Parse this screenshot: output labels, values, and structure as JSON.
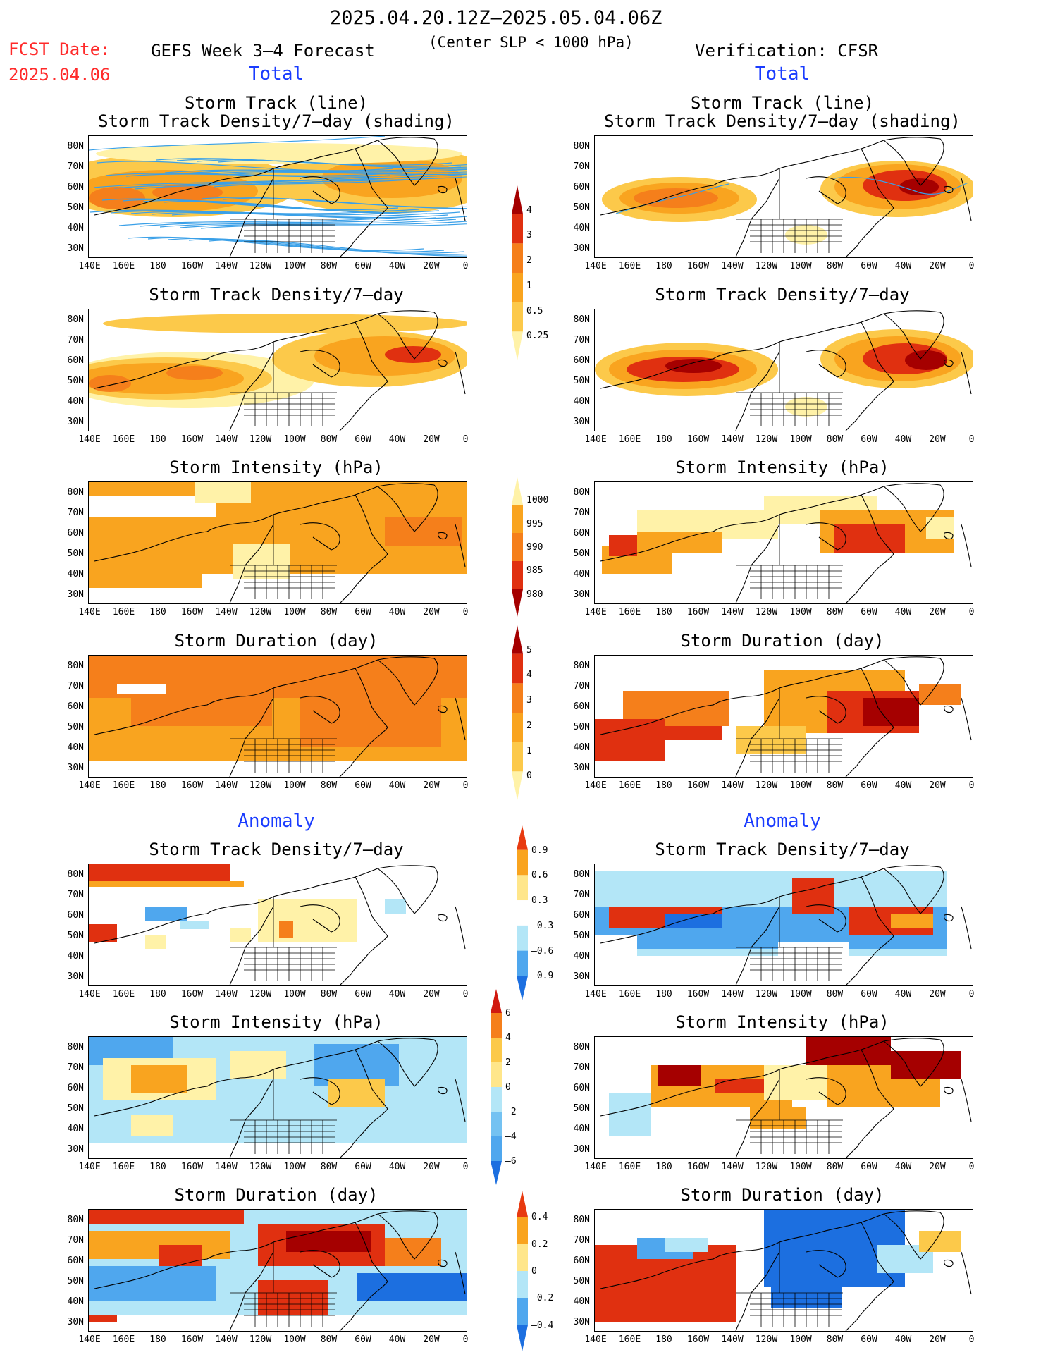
{
  "header": {
    "period": "2025.04.20.12Z–2025.05.04.06Z",
    "fcst_label": "FCST Date:",
    "fcst_date": "2025.04.06",
    "forecast_title": "GEFS Week 3–4 Forecast",
    "slp_note": "(Center SLP < 1000 hPa)",
    "verification": "Verification: CFSR"
  },
  "sections": {
    "total_left": "Total",
    "total_right": "Total",
    "anomaly_left": "Anomaly",
    "anomaly_right": "Anomaly"
  },
  "panel_titles": {
    "track_line": "Storm Track (line)",
    "track_shading": "Storm Track Density/7–day (shading)",
    "density": "Storm Track Density/7–day",
    "intensity": "Storm Intensity (hPa)",
    "duration": "Storm Duration (day)"
  },
  "axes": {
    "lat_labels": [
      "80N",
      "70N",
      "60N",
      "50N",
      "40N",
      "30N"
    ],
    "lon_labels": [
      "140E",
      "160E",
      "180",
      "160W",
      "140W",
      "120W",
      "100W",
      "80W",
      "60W",
      "40W",
      "20W",
      "0"
    ]
  },
  "colorbars": {
    "density_total": {
      "labels": [
        "4",
        "3",
        "2",
        "1",
        "0.5",
        "0.25"
      ],
      "colors": [
        "#a50000",
        "#e03010",
        "#f57f1b",
        "#f9a41f",
        "#fcc94a",
        "#fff2a8"
      ]
    },
    "intensity_total": {
      "labels": [
        "1000",
        "995",
        "990",
        "985",
        "980"
      ],
      "colors": [
        "#fff2a8",
        "#f9a41f",
        "#f57f1b",
        "#e03010",
        "#a50000"
      ]
    },
    "duration_total": {
      "labels": [
        "5",
        "4",
        "3",
        "2",
        "1",
        "0"
      ],
      "colors": [
        "#a50000",
        "#e03010",
        "#f57f1b",
        "#f9a41f",
        "#fcc94a",
        "#fff2a8"
      ]
    },
    "density_anom": {
      "labels": [
        "0.9",
        "0.6",
        "0.3",
        "–0.3",
        "–0.6",
        "–0.9"
      ],
      "colors": [
        "#e83a10",
        "#f9a41f",
        "#ffe68a",
        "#ffffff",
        "#b3e6f7",
        "#4fa7ee",
        "#1c6fe0"
      ]
    },
    "intensity_anom": {
      "labels": [
        "6",
        "4",
        "2",
        "0",
        "–2",
        "–4",
        "–6"
      ],
      "colors": [
        "#d11a10",
        "#f57f1b",
        "#fcc94a",
        "#ffe68a",
        "#b3e6f7",
        "#74c2f2",
        "#4fa7ee",
        "#1c6fe0"
      ]
    },
    "duration_anom": {
      "labels": [
        "0.4",
        "0.2",
        "0",
        "–0.2",
        "–0.4"
      ],
      "colors": [
        "#e83a10",
        "#f9a41f",
        "#ffe68a",
        "#b3e6f7",
        "#4fa7ee",
        "#1c6fe0"
      ]
    }
  },
  "palette": {
    "land_line": "#000000",
    "track_line": "#3aa0e8",
    "orange_light": "#fcc94a",
    "orange": "#f9a41f",
    "orange_dark": "#f57f1b",
    "red": "#e03010",
    "dark_red": "#a50000",
    "pale_yellow": "#fff2a8",
    "light_blue": "#b3e6f7",
    "mid_blue": "#4fa7ee",
    "blue": "#1c6fe0"
  }
}
